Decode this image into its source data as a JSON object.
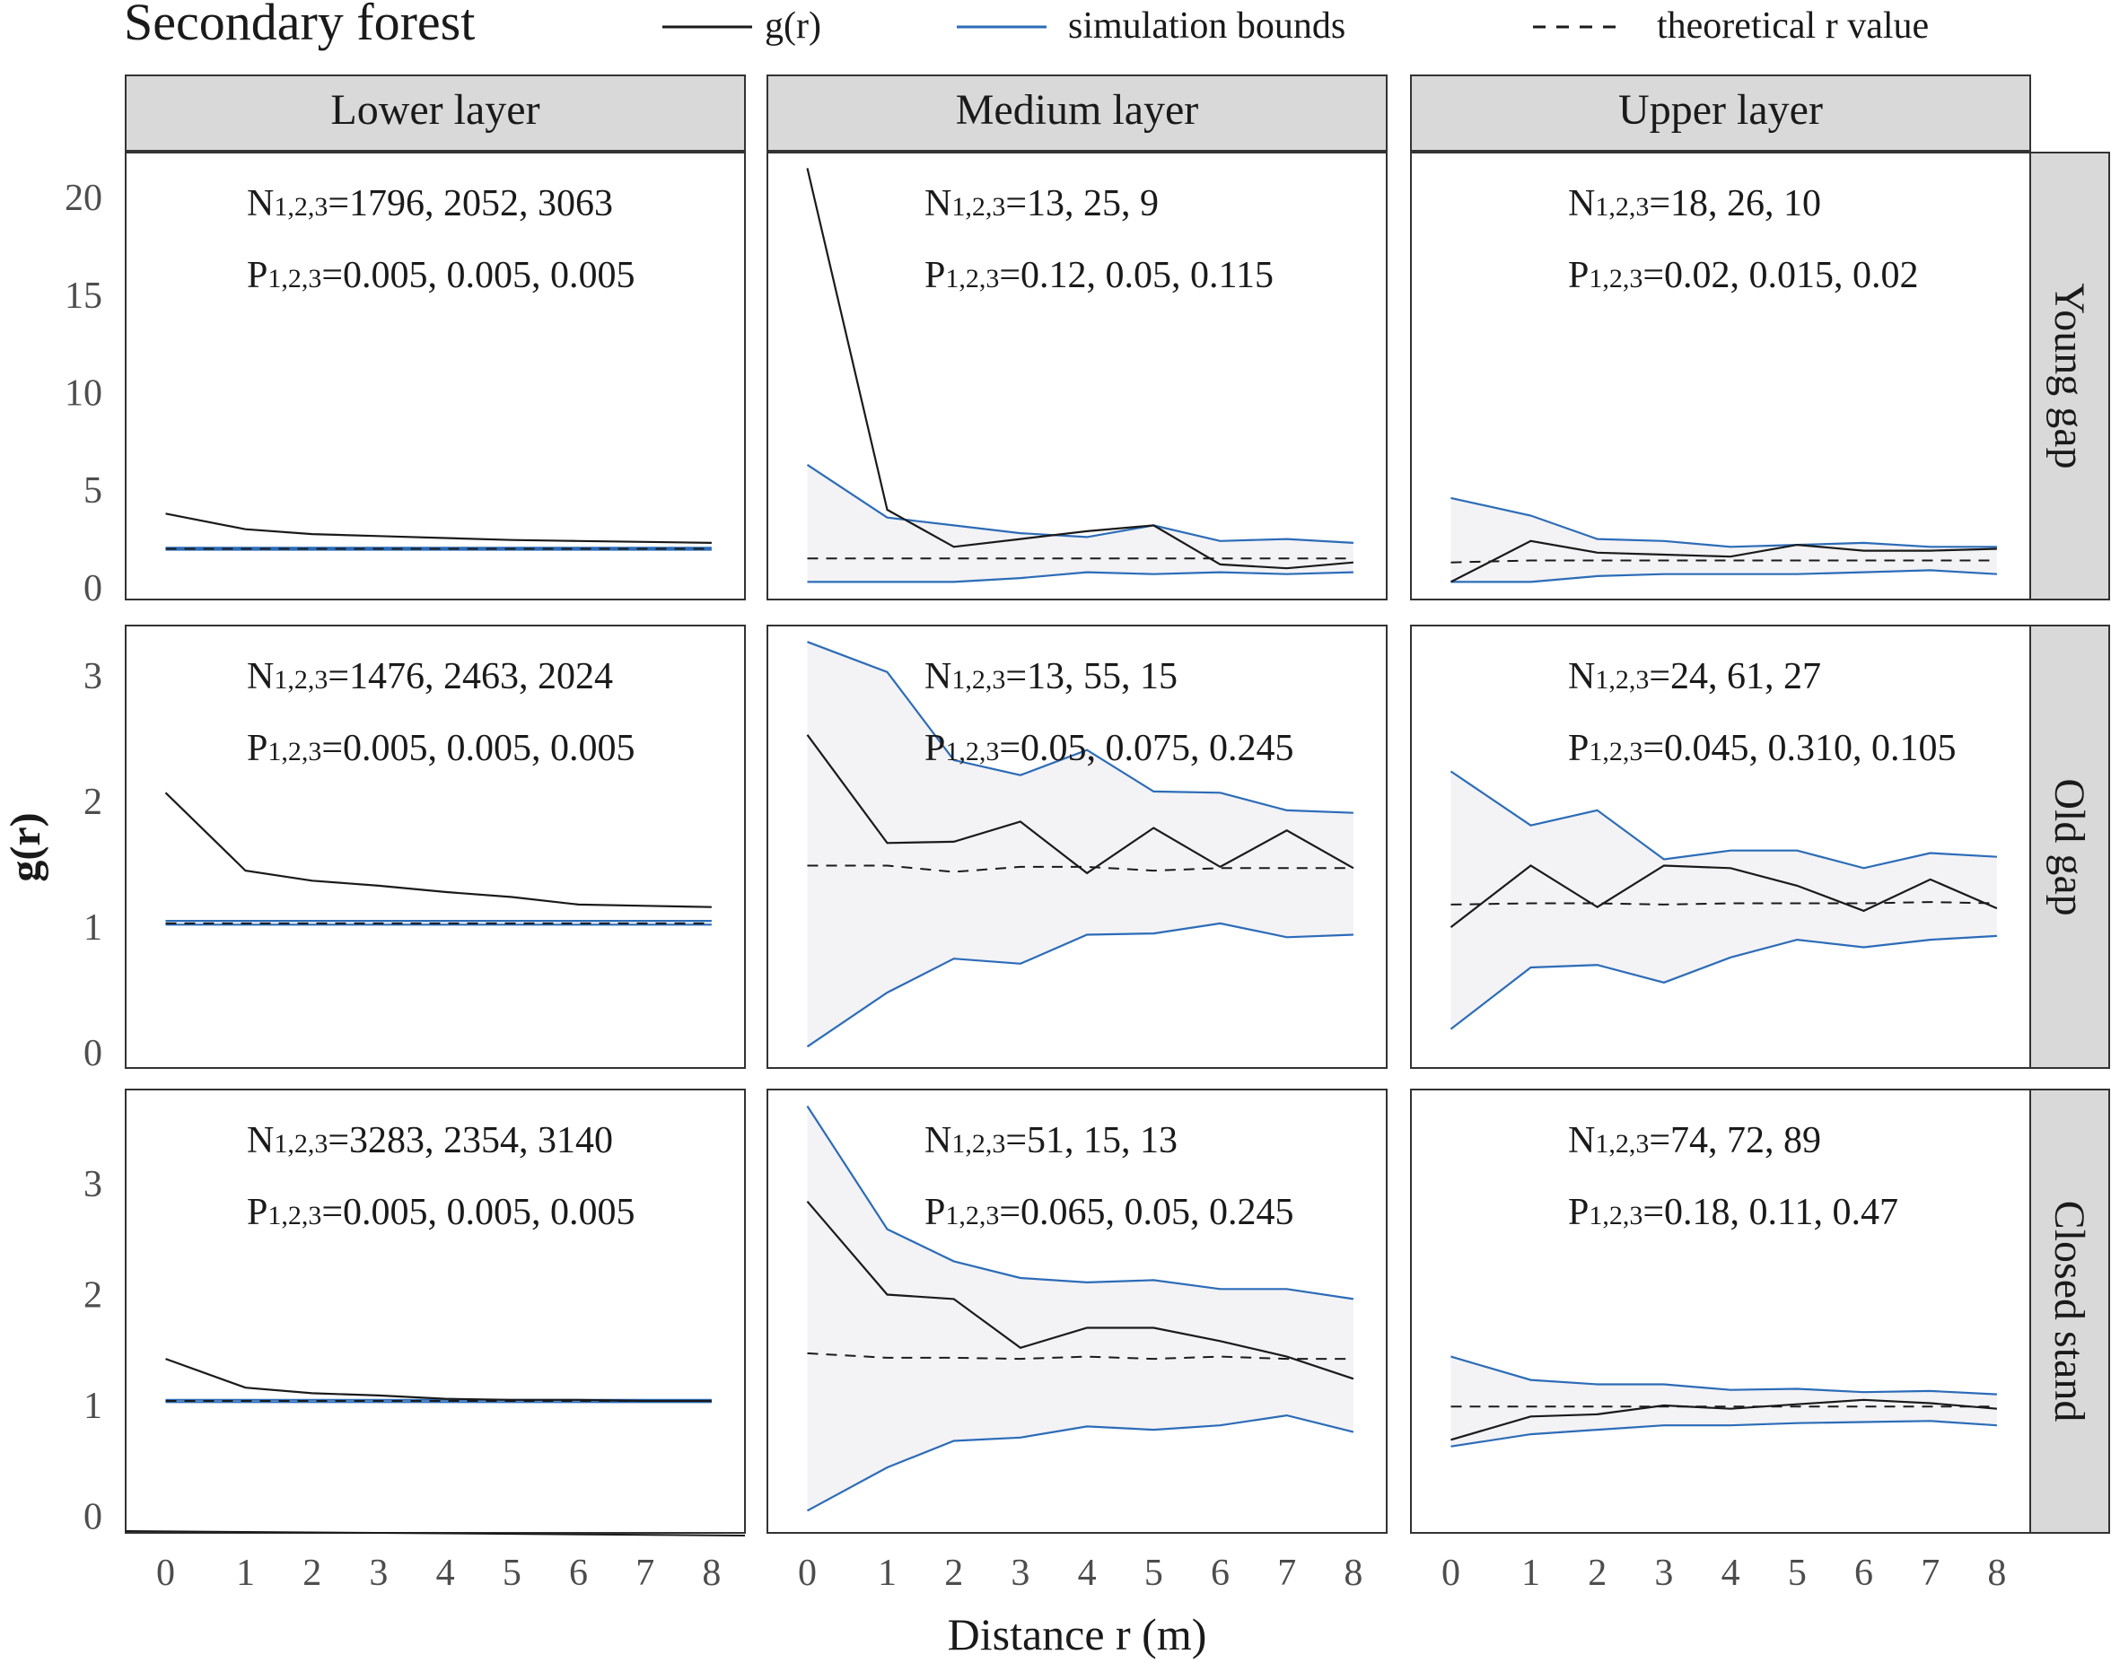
{
  "title": "Secondary forest",
  "legend": [
    {
      "label": "g(r)",
      "style": "solid",
      "color": "#1a1a1a"
    },
    {
      "label": "simulation bounds",
      "style": "solid",
      "color": "#2b6cb8"
    },
    {
      "label": "theoretical r value",
      "style": "dashed",
      "color": "#1a1a1a"
    }
  ],
  "column_headers": [
    "Lower layer",
    "Medium layer",
    "Upper layer"
  ],
  "row_headers": [
    "Young gap",
    "Old gap",
    "Closed stand"
  ],
  "y_axis_label": "g(r)",
  "x_axis_label": "Distance r (m)",
  "colors": {
    "observed": "#1a1a1a",
    "bounds": "#2b6cb8",
    "band_fill": "#f3f2f4",
    "strip_fill": "#d9d9d9"
  },
  "chart_data": {
    "type": "line",
    "x": [
      0,
      1.2,
      2.2,
      3.2,
      4.2,
      5.2,
      6.2,
      7.2,
      8.2
    ],
    "x_ticks": [
      "0",
      "1",
      "2",
      "3",
      "4",
      "5",
      "6",
      "7",
      "8"
    ],
    "xlim": [
      -0.6,
      8.7
    ],
    "rows": [
      {
        "name": "Young gap",
        "ylim": [
          -0.6,
          22.3
        ],
        "y_ticks": [
          0,
          5,
          10,
          15,
          20
        ],
        "panels": [
          {
            "layer": "Lower layer",
            "n_label": "N1,2,3=1796, 2052, 3063",
            "p_label": "P1,2,3=0.005, 0.005, 0.005",
            "observed": [
              3.8,
              3.0,
              2.75,
              2.65,
              2.55,
              2.45,
              2.4,
              2.35,
              2.3
            ],
            "upper": [
              2.05,
              2.05,
              2.05,
              2.05,
              2.05,
              2.05,
              2.05,
              2.05,
              2.05
            ],
            "lower": [
              1.95,
              1.95,
              1.95,
              1.95,
              1.95,
              1.95,
              1.95,
              1.95,
              1.95
            ],
            "theoretical": [
              2.0,
              2.0,
              2.0,
              2.0,
              2.0,
              2.0,
              2.0,
              2.0,
              2.0
            ]
          },
          {
            "layer": "Medium layer",
            "n_label": "N1,2,3=13, 25, 9",
            "p_label": "P1,2,3=0.12, 0.05, 0.115",
            "observed": [
              21.5,
              4.0,
              2.1,
              2.5,
              2.9,
              3.2,
              1.2,
              1.0,
              1.3
            ],
            "upper": [
              6.3,
              3.6,
              3.2,
              2.8,
              2.6,
              3.2,
              2.4,
              2.5,
              2.3
            ],
            "lower": [
              0.3,
              0.3,
              0.3,
              0.5,
              0.8,
              0.7,
              0.8,
              0.7,
              0.8
            ],
            "theoretical": [
              1.5,
              1.5,
              1.5,
              1.5,
              1.5,
              1.5,
              1.5,
              1.5,
              1.5
            ]
          },
          {
            "layer": "Upper layer",
            "n_label": "N1,2,3=18, 26, 10",
            "p_label": "P1,2,3=0.02, 0.015, 0.02",
            "observed": [
              0.3,
              2.4,
              1.8,
              1.7,
              1.6,
              2.2,
              1.9,
              1.9,
              2.0
            ],
            "upper": [
              4.6,
              3.7,
              2.5,
              2.4,
              2.1,
              2.2,
              2.3,
              2.1,
              2.1
            ],
            "lower": [
              0.3,
              0.3,
              0.6,
              0.7,
              0.7,
              0.7,
              0.8,
              0.9,
              0.7
            ],
            "theoretical": [
              1.3,
              1.4,
              1.4,
              1.4,
              1.4,
              1.4,
              1.4,
              1.4,
              1.4
            ]
          }
        ]
      },
      {
        "name": "Old gap",
        "ylim": [
          -0.12,
          3.4
        ],
        "y_ticks": [
          0,
          1,
          2,
          3
        ],
        "panels": [
          {
            "layer": "Lower layer",
            "n_label": "N1,2,3=1476, 2463, 2024",
            "p_label": "P1,2,3=0.005, 0.005, 0.005",
            "observed": [
              2.07,
              1.45,
              1.37,
              1.33,
              1.28,
              1.24,
              1.18,
              1.17,
              1.16
            ],
            "upper": [
              1.05,
              1.05,
              1.05,
              1.05,
              1.05,
              1.05,
              1.05,
              1.05,
              1.05
            ],
            "lower": [
              1.02,
              1.02,
              1.02,
              1.02,
              1.02,
              1.02,
              1.02,
              1.02,
              1.02
            ],
            "theoretical": [
              1.03,
              1.03,
              1.03,
              1.03,
              1.03,
              1.03,
              1.03,
              1.03,
              1.03
            ]
          },
          {
            "layer": "Medium layer",
            "n_label": "N1,2,3=13, 55, 15",
            "p_label": "P1,2,3=0.05, 0.075, 0.245",
            "observed": [
              2.53,
              1.67,
              1.68,
              1.84,
              1.43,
              1.79,
              1.48,
              1.77,
              1.47
            ],
            "upper": [
              3.27,
              3.03,
              2.33,
              2.21,
              2.41,
              2.08,
              2.07,
              1.93,
              1.91
            ],
            "lower": [
              0.05,
              0.48,
              0.75,
              0.71,
              0.94,
              0.95,
              1.03,
              0.92,
              0.94
            ],
            "theoretical": [
              1.49,
              1.49,
              1.44,
              1.48,
              1.48,
              1.45,
              1.47,
              1.47,
              1.47
            ]
          },
          {
            "layer": "Upper layer",
            "n_label": "N1,2,3=24, 61, 27",
            "p_label": "P1,2,3=0.045, 0.310, 0.105",
            "observed": [
              1.0,
              1.49,
              1.16,
              1.49,
              1.47,
              1.33,
              1.13,
              1.38,
              1.15
            ],
            "upper": [
              2.24,
              1.81,
              1.93,
              1.54,
              1.61,
              1.61,
              1.47,
              1.59,
              1.56
            ],
            "lower": [
              0.19,
              0.68,
              0.7,
              0.56,
              0.76,
              0.9,
              0.84,
              0.9,
              0.93
            ],
            "theoretical": [
              1.18,
              1.19,
              1.19,
              1.18,
              1.19,
              1.19,
              1.19,
              1.2,
              1.19
            ]
          }
        ]
      },
      {
        "name": "Closed stand",
        "ylim": [
          -0.15,
          3.85
        ],
        "y_ticks": [
          0,
          1,
          2,
          3
        ],
        "panels": [
          {
            "layer": "Lower layer",
            "n_label": "N1,2,3=3283, 2354, 3140",
            "p_label": "P1,2,3=0.005, 0.005, 0.005",
            "observed": [
              1.42,
              1.16,
              1.11,
              1.09,
              1.06,
              1.05,
              1.05,
              1.04,
              1.04
            ],
            "upper": [
              1.05,
              1.05,
              1.05,
              1.05,
              1.05,
              1.05,
              1.05,
              1.05,
              1.05
            ],
            "lower": [
              1.03,
              1.03,
              1.03,
              1.03,
              1.03,
              1.03,
              1.03,
              1.03,
              1.03
            ],
            "theoretical": [
              1.04,
              1.04,
              1.04,
              1.04,
              1.04,
              1.04,
              1.04,
              1.04,
              1.04
            ]
          },
          {
            "layer": "Medium layer",
            "n_label": "N1,2,3=51, 15, 13",
            "p_label": "P1,2,3=0.065, 0.05, 0.245",
            "observed": [
              2.84,
              2.0,
              1.96,
              1.52,
              1.7,
              1.7,
              1.58,
              1.44,
              1.24
            ],
            "upper": [
              3.7,
              2.59,
              2.3,
              2.15,
              2.11,
              2.13,
              2.05,
              2.05,
              1.96
            ],
            "lower": [
              0.05,
              0.44,
              0.68,
              0.71,
              0.81,
              0.78,
              0.82,
              0.91,
              0.76
            ],
            "theoretical": [
              1.47,
              1.43,
              1.43,
              1.42,
              1.44,
              1.42,
              1.44,
              1.42,
              1.42
            ]
          },
          {
            "layer": "Upper layer",
            "n_label": "N1,2,3=74, 72, 89",
            "p_label": "P1,2,3=0.18, 0.11, 0.47",
            "observed": [
              0.69,
              0.9,
              0.92,
              1.0,
              0.97,
              1.01,
              1.05,
              1.02,
              0.97
            ],
            "upper": [
              1.44,
              1.23,
              1.19,
              1.19,
              1.14,
              1.15,
              1.12,
              1.13,
              1.1
            ],
            "lower": [
              0.63,
              0.74,
              0.78,
              0.82,
              0.82,
              0.84,
              0.85,
              0.86,
              0.82
            ],
            "theoretical": [
              0.99,
              0.99,
              0.99,
              0.99,
              0.99,
              0.99,
              0.99,
              0.99,
              0.99
            ]
          }
        ]
      }
    ]
  }
}
